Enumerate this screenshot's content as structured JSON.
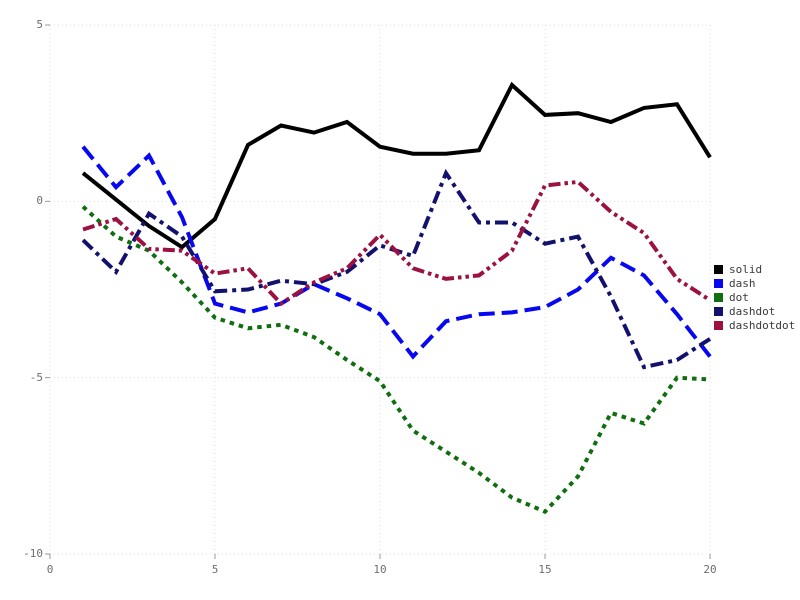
{
  "chart_data": {
    "type": "line",
    "title": "",
    "xlabel": "",
    "ylabel": "",
    "xlim": [
      0,
      20
    ],
    "ylim": [
      -10,
      5
    ],
    "grid": "dotted",
    "legend_position": "right-outside",
    "x_ticks": [
      {
        "v": 0,
        "label": "0"
      },
      {
        "v": 5,
        "label": "5"
      },
      {
        "v": 10,
        "label": "10"
      },
      {
        "v": 15,
        "label": "15"
      },
      {
        "v": 20,
        "label": "20"
      }
    ],
    "y_ticks": [
      {
        "v": 5,
        "label": "5"
      },
      {
        "v": 0,
        "label": "0"
      },
      {
        "v": -5,
        "label": "-5"
      },
      {
        "v": -10,
        "label": "-10"
      }
    ],
    "x": [
      1,
      2,
      3,
      4,
      5,
      6,
      7,
      8,
      9,
      10,
      11,
      12,
      13,
      14,
      15,
      16,
      17,
      18,
      19,
      20
    ],
    "series": [
      {
        "name": "solid",
        "color": "#000000",
        "line_style": "solid",
        "values": [
          0.8,
          0.05,
          -0.7,
          -1.3,
          -0.5,
          1.6,
          2.15,
          1.95,
          2.25,
          1.55,
          1.35,
          1.35,
          1.45,
          3.3,
          2.45,
          2.5,
          2.25,
          2.65,
          2.75,
          1.25
        ]
      },
      {
        "name": "dash",
        "color": "#0808f0",
        "line_style": "dash",
        "values": [
          1.55,
          0.4,
          1.3,
          -0.45,
          -2.9,
          -3.15,
          -2.9,
          -2.35,
          -2.75,
          -3.2,
          -4.4,
          -3.4,
          -3.2,
          -3.15,
          -3.0,
          -2.5,
          -1.6,
          -2.1,
          -3.2,
          -4.4
        ]
      },
      {
        "name": "dot",
        "color": "#106e10",
        "line_style": "dot",
        "values": [
          -0.15,
          -1.0,
          -1.4,
          -2.3,
          -3.3,
          -3.6,
          -3.5,
          -3.85,
          -4.5,
          -5.1,
          -6.5,
          -7.1,
          -7.7,
          -8.4,
          -8.8,
          -7.8,
          -6.0,
          -6.3,
          -5.0,
          -5.05
        ]
      },
      {
        "name": "dashdot",
        "color": "#12126e",
        "line_style": "dashdot",
        "values": [
          -1.1,
          -2.0,
          -0.35,
          -1.0,
          -2.55,
          -2.5,
          -2.25,
          -2.35,
          -2.0,
          -1.25,
          -1.55,
          0.8,
          -0.6,
          -0.6,
          -1.2,
          -1.0,
          -2.7,
          -4.7,
          -4.5,
          -3.9
        ]
      },
      {
        "name": "dashdotdot",
        "color": "#9a1142",
        "line_style": "dashdotdot",
        "values": [
          -0.8,
          -0.5,
          -1.35,
          -1.4,
          -2.05,
          -1.9,
          -2.9,
          -2.3,
          -1.9,
          -0.95,
          -1.9,
          -2.2,
          -2.1,
          -1.4,
          0.45,
          0.55,
          -0.3,
          -0.9,
          -2.2,
          -2.8
        ]
      }
    ],
    "legend_entries": [
      "solid",
      "dash",
      "dot",
      "dashdot",
      "dashdotdot"
    ]
  },
  "style": {
    "grid_color": "#dddde9",
    "tick_color": "#9a9a9a",
    "tick_label_color": "#6e6e6e",
    "legend_text_color": "#3a3a3a",
    "background": "#ffffff"
  }
}
